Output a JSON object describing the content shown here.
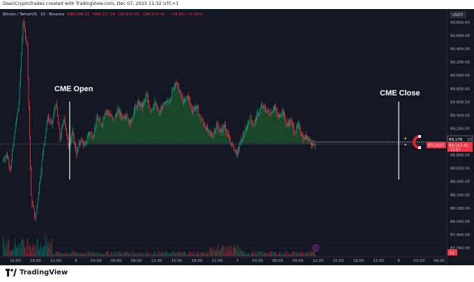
{
  "header": {
    "credit": "DaanCryptoTrades created with TradingView.com, Dec 07, 2025 11:32 UTC+1"
  },
  "legend": {
    "symbol": "Bitcoin / TetherUS · 15 · Binance",
    "open": "O89,198.23",
    "high": "H89,217.28",
    "low": "L89,142.00",
    "close": "C89,143.41",
    "change": "−54.82 (−0.06%)"
  },
  "currency_button": "USDT",
  "price_markers": {
    "current_price": "89,178",
    "tag_line2": "10",
    "ticker_label": "BTCUSDT",
    "last_price": "89,143.41",
    "countdown": "12:57",
    "volume_tag": "11"
  },
  "annotations": {
    "cme_open": "CME Open",
    "cme_close": "CME Close"
  },
  "footer": {
    "brand": "TradingView"
  },
  "colors": {
    "up": "#089981",
    "down": "#f23645",
    "fill": "#1b4d2c",
    "background": "#131722",
    "magnet_red": "#e0262e"
  },
  "chart_data": {
    "type": "candlestick",
    "symbol": "BTCUSDT",
    "interval": "15",
    "exchange": "Binance",
    "y_axis_labels": [
      "90,800.00",
      "90,600.00",
      "90,400.00",
      "90,200.00",
      "90,000.00",
      "89,800.00",
      "89,600.00",
      "89,400.00",
      "89,200.00",
      "89,000.00",
      "88,800.00",
      "88,650.00",
      "88,490.00",
      "88,330.00",
      "88,180.00",
      "88,040.00",
      "87,900.00",
      "87,760.00"
    ],
    "x_axis_labels": [
      "15:00",
      "18:00",
      "21:00",
      "6",
      "03:00",
      "06:00",
      "09:00",
      "12:00",
      "15:00",
      "18:00",
      "21:00",
      "7",
      "03:00",
      "06:00",
      "09:00",
      "12:00",
      "15:00",
      "18:00",
      "21:00",
      "8",
      "03:00",
      "06:00"
    ],
    "gap_reference_price": 89143,
    "cme_open_label_x": "6 Dec ~01:00",
    "cme_close_label_x": "7 Dec ~23:00",
    "price_path": [
      [
        88900,
        89000
      ],
      [
        89000,
        88800
      ],
      [
        88800,
        89300
      ],
      [
        89300,
        89700
      ],
      [
        89700,
        90800
      ],
      [
        90800,
        90500
      ],
      [
        90500,
        88400
      ],
      [
        88400,
        88100
      ],
      [
        88100,
        88600
      ],
      [
        88600,
        89100
      ],
      [
        89100,
        89500
      ],
      [
        89500,
        89400
      ],
      [
        89400,
        89700
      ],
      [
        89700,
        89200
      ],
      [
        89200,
        89500
      ],
      [
        89500,
        89100
      ],
      [
        89100,
        89300
      ],
      [
        89300,
        89000
      ],
      [
        89000,
        89200
      ],
      [
        89200,
        89100
      ],
      [
        89100,
        89300
      ],
      [
        89300,
        89250
      ],
      [
        89250,
        89500
      ],
      [
        89500,
        89400
      ],
      [
        89400,
        89600
      ],
      [
        89600,
        89550
      ],
      [
        89550,
        89450
      ],
      [
        89450,
        89600
      ],
      [
        89600,
        89500
      ],
      [
        89500,
        89550
      ],
      [
        89550,
        89400
      ],
      [
        89400,
        89600
      ],
      [
        89600,
        89700
      ],
      [
        89700,
        89650
      ],
      [
        89650,
        89800
      ],
      [
        89800,
        89600
      ],
      [
        89600,
        89700
      ],
      [
        89700,
        89550
      ],
      [
        89550,
        89650
      ],
      [
        89650,
        89700
      ],
      [
        89700,
        89800
      ],
      [
        89800,
        90000
      ],
      [
        90000,
        89850
      ],
      [
        89850,
        89700
      ],
      [
        89700,
        89800
      ],
      [
        89800,
        89600
      ],
      [
        89600,
        89650
      ],
      [
        89650,
        89500
      ],
      [
        89500,
        89400
      ],
      [
        89400,
        89300
      ],
      [
        89300,
        89250
      ],
      [
        89250,
        89400
      ],
      [
        89400,
        89300
      ],
      [
        89300,
        89400
      ],
      [
        89400,
        89200
      ],
      [
        89200,
        89100
      ],
      [
        89100,
        89000
      ],
      [
        89000,
        89200
      ],
      [
        89200,
        89300
      ],
      [
        89300,
        89500
      ],
      [
        89500,
        89400
      ],
      [
        89400,
        89550
      ],
      [
        89550,
        89650
      ],
      [
        89650,
        89600
      ],
      [
        89600,
        89550
      ],
      [
        89550,
        89650
      ],
      [
        89650,
        89500
      ],
      [
        89500,
        89600
      ],
      [
        89600,
        89400
      ],
      [
        89400,
        89450
      ],
      [
        89450,
        89300
      ],
      [
        89300,
        89400
      ],
      [
        89400,
        89200
      ],
      [
        89200,
        89250
      ],
      [
        89250,
        89150
      ],
      [
        89150,
        89143
      ]
    ]
  }
}
